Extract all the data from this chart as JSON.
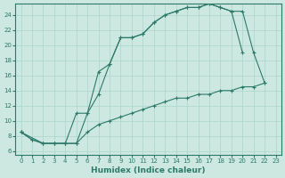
{
  "xlabel": "Humidex (Indice chaleur)",
  "background_color": "#cce8e0",
  "grid_color": "#aad4cc",
  "line_color": "#2d7a6a",
  "xlim": [
    -0.5,
    23.5
  ],
  "ylim": [
    5.5,
    25.5
  ],
  "xticks": [
    0,
    1,
    2,
    3,
    4,
    5,
    6,
    7,
    8,
    9,
    10,
    11,
    12,
    13,
    14,
    15,
    16,
    17,
    18,
    19,
    20,
    21,
    22,
    23
  ],
  "yticks": [
    6,
    8,
    10,
    12,
    14,
    16,
    18,
    20,
    22,
    24
  ],
  "line1_x": [
    0,
    1,
    2,
    3,
    4,
    5,
    6,
    7,
    8,
    9,
    10,
    11,
    12,
    13,
    14,
    15,
    16,
    17,
    18,
    19,
    20
  ],
  "line1_y": [
    8.5,
    7.5,
    7,
    7,
    7,
    7,
    11.0,
    16.5,
    17.5,
    21.0,
    21.0,
    21.5,
    23.0,
    24.0,
    24.5,
    25.0,
    25.0,
    25.5,
    25.0,
    24.5,
    19.0
  ],
  "line2_x": [
    0,
    1,
    2,
    3,
    4,
    5,
    6,
    7,
    8,
    9,
    10,
    11,
    12,
    13,
    14,
    15,
    16,
    17,
    18,
    19,
    20,
    21,
    22
  ],
  "line2_y": [
    8.5,
    7.5,
    7,
    7,
    7,
    11.0,
    11.0,
    13.5,
    17.5,
    21.0,
    21.0,
    21.5,
    23.0,
    24.0,
    24.5,
    25.0,
    25.0,
    25.5,
    25.0,
    24.5,
    24.5,
    19.0,
    15.0
  ],
  "line3_x": [
    0,
    2,
    3,
    4,
    5,
    6,
    7,
    8,
    9,
    10,
    11,
    12,
    13,
    14,
    15,
    16,
    17,
    18,
    19,
    20,
    21,
    22
  ],
  "line3_y": [
    8.5,
    7.0,
    7.0,
    7.0,
    7.0,
    8.5,
    9.5,
    10.0,
    10.5,
    11.0,
    11.5,
    12.0,
    12.5,
    13.0,
    13.0,
    13.5,
    13.5,
    14.0,
    14.0,
    14.5,
    14.5,
    15.0
  ]
}
